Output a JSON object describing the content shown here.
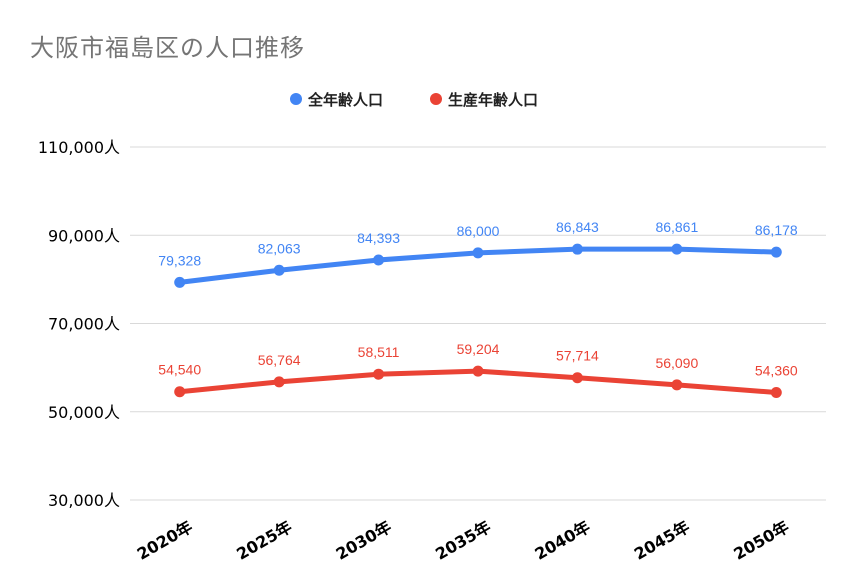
{
  "chart_data": {
    "type": "line",
    "title": "大阪市福島区の人口推移",
    "categories": [
      "2020年",
      "2025年",
      "2030年",
      "2035年",
      "2040年",
      "2045年",
      "2050年"
    ],
    "series": [
      {
        "name": "全年齢人口",
        "color": "#4285f4",
        "values": [
          79328,
          82063,
          84393,
          86000,
          86843,
          86861,
          86178
        ],
        "labels": [
          "79,328",
          "82,063",
          "84,393",
          "86,000",
          "86,843",
          "86,861",
          "86,178"
        ]
      },
      {
        "name": "生産年齢人口",
        "color": "#ea4335",
        "values": [
          54540,
          56764,
          58511,
          59204,
          57714,
          56090,
          54360
        ],
        "labels": [
          "54,540",
          "56,764",
          "58,511",
          "59,204",
          "57,714",
          "56,090",
          "54,360"
        ]
      }
    ],
    "yticks": [
      30000,
      50000,
      70000,
      90000,
      110000
    ],
    "ytick_labels": [
      "30,000人",
      "50,000人",
      "70,000人",
      "90,000人",
      "110,000人"
    ],
    "ylim": [
      30000,
      110000
    ],
    "grid": true,
    "legend_position": "top"
  }
}
